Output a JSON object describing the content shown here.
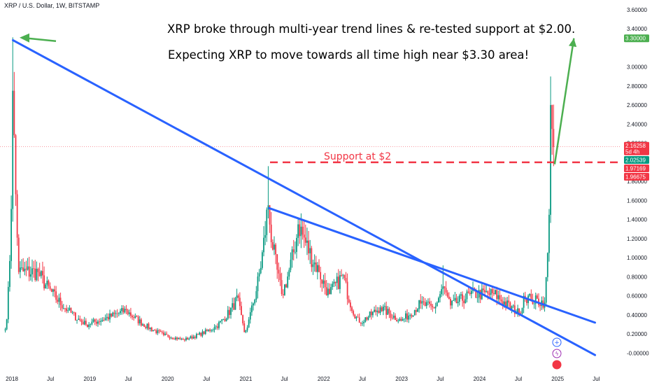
{
  "header": {
    "symbol": "XRP / U.S. Dollar, 1W, BITSTAMP"
  },
  "annotations": {
    "line1": "XRP broke through multi-year trend lines & re-tested support at $2.00.",
    "line2": "Expecting XRP to move towards all time high near $3.30 area!",
    "support_label": "Support at $2"
  },
  "colors": {
    "up": "#089981",
    "down": "#f23645",
    "trendline": "#2962ff",
    "arrow": "#4caf50",
    "support": "#f23645",
    "bg": "#ffffff"
  },
  "chart_data": {
    "type": "candlestick",
    "title": "XRP / U.S. Dollar, 1W, BITSTAMP",
    "ylim": [
      -0.06,
      3.68
    ],
    "ylabel": "",
    "xlabel": "",
    "y_ticks": [
      "3.60000",
      "3.40000",
      "3.00000",
      "2.80000",
      "2.60000",
      "2.40000",
      "2.20000",
      "1.80000",
      "1.60000",
      "1.40000",
      "1.20000",
      "1.00000",
      "0.80000",
      "0.60000",
      "0.40000",
      "0.20000",
      "-0.00000"
    ],
    "x_ticks": [
      "2018",
      "Jul",
      "2019",
      "Jul",
      "2020",
      "Jul",
      "2021",
      "Jul",
      "2022",
      "Jul",
      "2023",
      "Jul",
      "2024",
      "Jul",
      "2025",
      "Jul"
    ],
    "price_tags": [
      {
        "value": 3.3,
        "label": "3.30000",
        "color": "#4caf50"
      },
      {
        "value": 2.16258,
        "label": "2.16258",
        "sub": "5d 4h",
        "color": "#f23645"
      },
      {
        "value": 2.02539,
        "label": "2.02539",
        "color": "#089981"
      },
      {
        "value": 1.97169,
        "label": "1.97169",
        "color": "#f23645"
      },
      {
        "value": 1.96675,
        "label": "1.96675",
        "color": "#f23645"
      }
    ],
    "current_price": 2.16258,
    "support_level": 2.0,
    "ath_target": 3.3,
    "key_points": [
      {
        "date": "2017-12-01",
        "close": 0.25
      },
      {
        "date": "2018-01-06",
        "high": 3.31,
        "close": 2.75
      },
      {
        "date": "2018-02-05",
        "close": 0.85
      },
      {
        "date": "2018-05-01",
        "close": 0.85
      },
      {
        "date": "2018-09-20",
        "close": 0.45
      },
      {
        "date": "2018-12-15",
        "close": 0.3
      },
      {
        "date": "2019-06-20",
        "close": 0.45
      },
      {
        "date": "2019-12-15",
        "close": 0.19
      },
      {
        "date": "2020-03-15",
        "close": 0.14
      },
      {
        "date": "2020-08-15",
        "close": 0.28
      },
      {
        "date": "2020-11-25",
        "close": 0.58
      },
      {
        "date": "2020-12-28",
        "close": 0.22
      },
      {
        "date": "2021-02-01",
        "close": 0.5
      },
      {
        "date": "2021-04-14",
        "high": 1.96,
        "close": 1.55
      },
      {
        "date": "2021-06-20",
        "close": 0.62
      },
      {
        "date": "2021-09-06",
        "close": 1.35
      },
      {
        "date": "2021-12-10",
        "close": 0.85
      },
      {
        "date": "2022-01-25",
        "close": 0.62
      },
      {
        "date": "2022-04-01",
        "close": 0.82
      },
      {
        "date": "2022-06-15",
        "close": 0.32
      },
      {
        "date": "2022-09-23",
        "close": 0.48
      },
      {
        "date": "2022-12-30",
        "close": 0.34
      },
      {
        "date": "2023-03-29",
        "close": 0.52
      },
      {
        "date": "2023-06-01",
        "close": 0.47
      },
      {
        "date": "2023-07-13",
        "high": 0.92,
        "close": 0.7
      },
      {
        "date": "2023-08-20",
        "close": 0.5
      },
      {
        "date": "2023-11-20",
        "close": 0.62
      },
      {
        "date": "2024-03-11",
        "close": 0.62
      },
      {
        "date": "2024-07-05",
        "close": 0.42
      },
      {
        "date": "2024-07-29",
        "close": 0.6
      },
      {
        "date": "2024-09-01",
        "close": 0.56
      },
      {
        "date": "2024-11-01",
        "close": 0.53
      },
      {
        "date": "2024-11-15",
        "close": 1.05
      },
      {
        "date": "2024-11-25",
        "close": 1.45
      },
      {
        "date": "2024-12-02",
        "high": 2.9,
        "close": 2.6
      },
      {
        "date": "2024-12-09",
        "close": 2.35
      },
      {
        "date": "2024-12-16",
        "close": 2.16
      }
    ],
    "trend_lines": [
      {
        "from": {
          "date": "2018-01-06",
          "value": 3.28
        },
        "to": {
          "date": "2025-06-25",
          "value": -0.02
        }
      },
      {
        "from": {
          "date": "2021-04-20",
          "value": 1.52
        },
        "to": {
          "date": "2025-06-25",
          "value": 0.32
        }
      }
    ],
    "forecast_arrow": {
      "from": {
        "date": "2024-12-18",
        "value": 1.98
      },
      "to": {
        "date": "2025-03-18",
        "value": 3.3
      }
    }
  }
}
